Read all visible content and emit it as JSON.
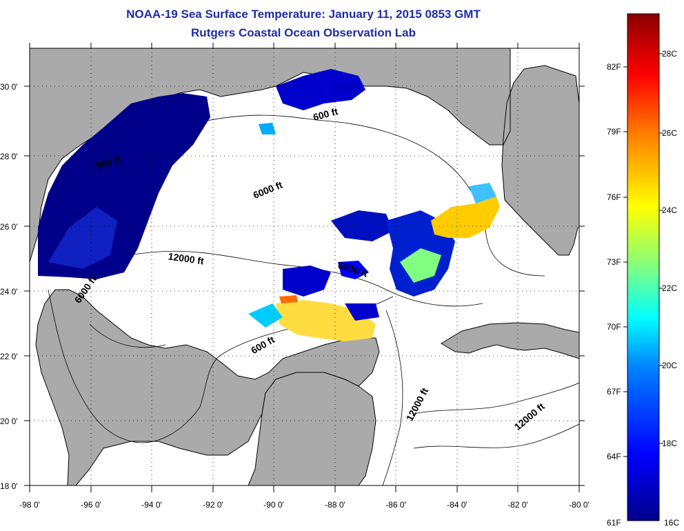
{
  "title": "NOAA-19 Sea Surface Temperature:  January 11, 2015 0853 GMT",
  "subtitle": "Rutgers Coastal Ocean Observation Lab",
  "map": {
    "lon_range": [
      -98,
      -80
    ],
    "lat_range": [
      18,
      31
    ],
    "lon_ticks": [
      "-98 0'",
      "-96 0'",
      "-94 0'",
      "-92 0'",
      "-90 0'",
      "-88 0'",
      "-86 0'",
      "-84 0'",
      "-82 0'",
      "-80 0'"
    ],
    "lat_ticks": [
      "18 0'",
      "20 0'",
      "22 0'",
      "24 0'",
      "26 0'",
      "28 0'",
      "30 0'"
    ],
    "grid": "dotted",
    "land_color": "#aaaaaa",
    "ocean_color": "#ffffff",
    "contour_labels": [
      "600 ft",
      "600 ft",
      "6000 ft",
      "12000 ft",
      "6000 ft",
      "6000 ft",
      "600 ft",
      "12000 ft",
      "12000 ft"
    ]
  },
  "colorbar": {
    "placement": "right",
    "fahrenheit_labels": [
      "82F",
      "79F",
      "76F",
      "73F",
      "70F",
      "67F",
      "64F",
      "61F"
    ],
    "celsius_labels": [
      "28C",
      "26C",
      "24C",
      "22C",
      "20C",
      "18C",
      "16C"
    ],
    "colors": [
      "#00008b",
      "#0000ff",
      "#0080ff",
      "#00ffff",
      "#80ff80",
      "#ffff00",
      "#ff8000",
      "#ff0000",
      "#8b0000"
    ]
  }
}
